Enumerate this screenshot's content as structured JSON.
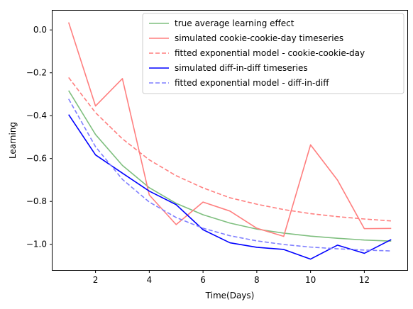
{
  "chart_data": {
    "type": "line",
    "title": "",
    "xlabel": "Time(Days)",
    "ylabel": "Learning",
    "xlim": [
      0.4,
      13.6
    ],
    "ylim": [
      -1.12,
      0.09
    ],
    "grid": false,
    "legend_placement": "top-right",
    "x_ticks": [
      2,
      4,
      6,
      8,
      10,
      12
    ],
    "x_tick_labels": [
      "2",
      "4",
      "6",
      "8",
      "10",
      "12"
    ],
    "y_ticks": [
      0.0,
      -0.2,
      -0.4,
      -0.6,
      -0.8,
      -1.0
    ],
    "y_tick_labels": [
      "0.0",
      "−0.2",
      "−0.4",
      "−0.6",
      "−0.8",
      "−1.0"
    ],
    "x": [
      1,
      2,
      3,
      4,
      5,
      6,
      7,
      8,
      9,
      10,
      11,
      12,
      13
    ],
    "series": [
      {
        "name": "true average learning effect",
        "color": "#7fbf7f",
        "style": "solid",
        "values": [
          -0.283,
          -0.488,
          -0.632,
          -0.736,
          -0.809,
          -0.862,
          -0.901,
          -0.929,
          -0.948,
          -0.962,
          -0.972,
          -0.98,
          -0.985
        ]
      },
      {
        "name": "simulated cookie-cookie-day timeseries",
        "color": "#ff7f7f",
        "style": "solid",
        "values": [
          0.035,
          -0.355,
          -0.227,
          -0.77,
          -0.908,
          -0.803,
          -0.845,
          -0.925,
          -0.963,
          -0.536,
          -0.7,
          -0.927,
          -0.926
        ]
      },
      {
        "name": "fitted exponential model - cookie-cookie-day",
        "color": "#ff7f7f",
        "style": "dashed",
        "values": [
          -0.222,
          -0.386,
          -0.508,
          -0.606,
          -0.68,
          -0.737,
          -0.783,
          -0.813,
          -0.838,
          -0.857,
          -0.871,
          -0.882,
          -0.891
        ]
      },
      {
        "name": "simulated diff-in-diff timeseries",
        "color": "#0000ff",
        "style": "solid",
        "values": [
          -0.395,
          -0.583,
          -0.668,
          -0.752,
          -0.815,
          -0.932,
          -0.993,
          -1.014,
          -1.024,
          -1.069,
          -1.004,
          -1.042,
          -0.978
        ]
      },
      {
        "name": "fitted exponential model - diff-in-diff",
        "color": "#7f7fff",
        "style": "dashed",
        "values": [
          -0.322,
          -0.545,
          -0.697,
          -0.803,
          -0.875,
          -0.925,
          -0.96,
          -0.984,
          -1.001,
          -1.013,
          -1.021,
          -1.027,
          -1.031
        ]
      }
    ]
  }
}
